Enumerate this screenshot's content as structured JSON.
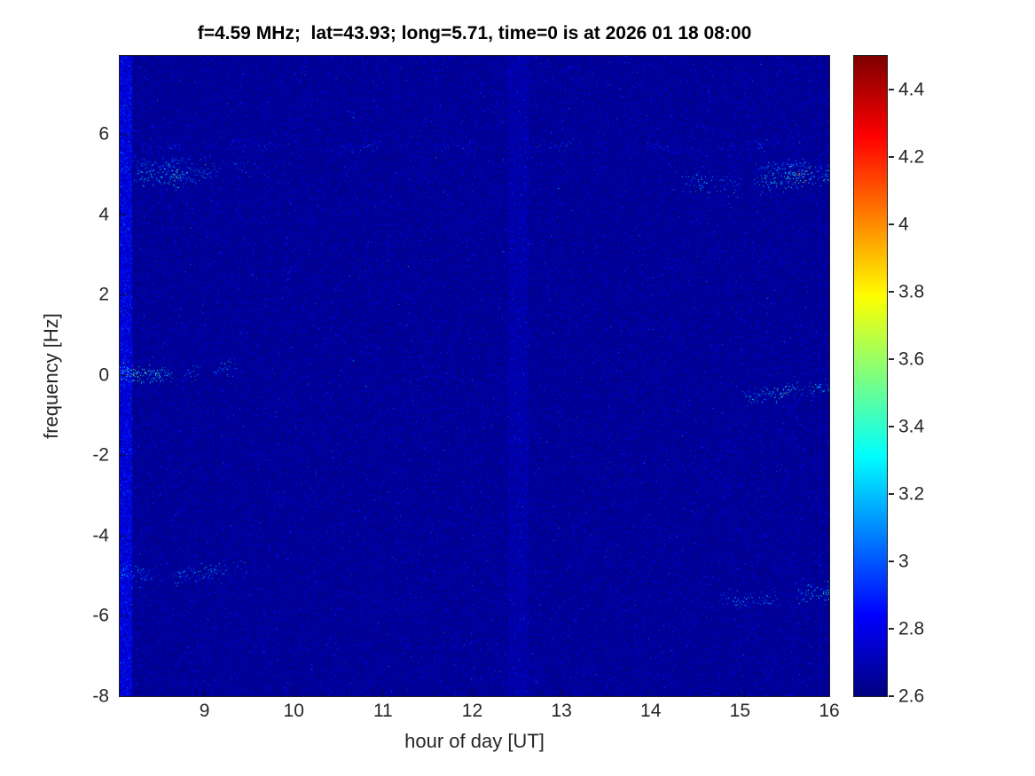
{
  "chart_data": {
    "type": "heatmap",
    "title": "f=4.59 MHz;  lat=43.93; long=5.71, time=0 is at 2026 01 18 08:00",
    "xlabel": "hour of day [UT]",
    "ylabel": "frequency [Hz]",
    "xlim": [
      8.05,
      16
    ],
    "ylim": [
      -8,
      7.95
    ],
    "xticks": [
      {
        "v": 9,
        "label": "9"
      },
      {
        "v": 10,
        "label": "10"
      },
      {
        "v": 11,
        "label": "11"
      },
      {
        "v": 12,
        "label": "12"
      },
      {
        "v": 13,
        "label": "13"
      },
      {
        "v": 14,
        "label": "14"
      },
      {
        "v": 15,
        "label": "15"
      },
      {
        "v": 16,
        "label": "16"
      }
    ],
    "yticks": [
      {
        "v": 6,
        "label": "6"
      },
      {
        "v": 4,
        "label": "4"
      },
      {
        "v": 2,
        "label": "2"
      },
      {
        "v": 0,
        "label": "0"
      },
      {
        "v": -2,
        "label": "-2"
      },
      {
        "v": -4,
        "label": "-4"
      },
      {
        "v": -6,
        "label": "-6"
      },
      {
        "v": -8,
        "label": "-8"
      }
    ],
    "colormap": "jet",
    "colorbar": {
      "min": 2.6,
      "max": 4.5,
      "ticks": [
        {
          "v": 4.4,
          "label": "4.4"
        },
        {
          "v": 4.2,
          "label": "4.2"
        },
        {
          "v": 4.0,
          "label": "4"
        },
        {
          "v": 3.8,
          "label": "3.8"
        },
        {
          "v": 3.6,
          "label": "3.6"
        },
        {
          "v": 3.4,
          "label": "3.4"
        },
        {
          "v": 3.2,
          "label": "3.2"
        },
        {
          "v": 3.0,
          "label": "3"
        },
        {
          "v": 2.8,
          "label": "2.8"
        },
        {
          "v": 2.6,
          "label": "2.6"
        }
      ]
    },
    "background_level": 2.6,
    "noise": {
      "mean_excess": 0.05,
      "max_excess": 0.8
    },
    "vertical_bands": [
      {
        "x0": 8.05,
        "x1": 8.18,
        "boost": 0.25
      },
      {
        "x0": 12.4,
        "x1": 12.62,
        "boost": 0.06
      }
    ],
    "features": [
      {
        "y": 5.05,
        "x0": 8.05,
        "x1": 9.6,
        "hot": "start",
        "base": 3.0,
        "peak": 4.1,
        "thickness": 0.18,
        "density": 0.9
      },
      {
        "y": 5.35,
        "x0": 8.05,
        "x1": 9.2,
        "hot": "start",
        "base": 2.9,
        "peak": 3.5,
        "thickness": 0.12,
        "density": 0.6
      },
      {
        "y": 5.7,
        "x0": 8.3,
        "x1": 16.0,
        "hot": "none",
        "base": 2.8,
        "peak": 3.2,
        "thickness": 0.1,
        "density": 0.35
      },
      {
        "y": 4.85,
        "x0": 14.35,
        "x1": 16.0,
        "hot": "end",
        "base": 3.0,
        "peak": 4.35,
        "thickness": 0.18,
        "density": 0.95
      },
      {
        "y": 5.15,
        "x0": 14.5,
        "x1": 16.0,
        "hot": "end",
        "base": 2.9,
        "peak": 3.4,
        "thickness": 0.1,
        "density": 0.5
      },
      {
        "y": 0.1,
        "x0": 8.05,
        "x1": 9.35,
        "hot": "start",
        "base": 3.0,
        "peak": 4.25,
        "thickness": 0.15,
        "density": 0.9
      },
      {
        "y": -0.4,
        "x0": 14.95,
        "x1": 16.0,
        "hot": "end",
        "base": 3.0,
        "peak": 4.25,
        "thickness": 0.15,
        "density": 0.9
      },
      {
        "y": -4.9,
        "x0": 8.05,
        "x1": 9.55,
        "hot": "start",
        "base": 2.95,
        "peak": 3.8,
        "thickness": 0.15,
        "density": 0.8
      },
      {
        "y": -5.5,
        "x0": 14.75,
        "x1": 16.0,
        "hot": "end",
        "base": 2.95,
        "peak": 4.1,
        "thickness": 0.15,
        "density": 0.8
      }
    ]
  }
}
